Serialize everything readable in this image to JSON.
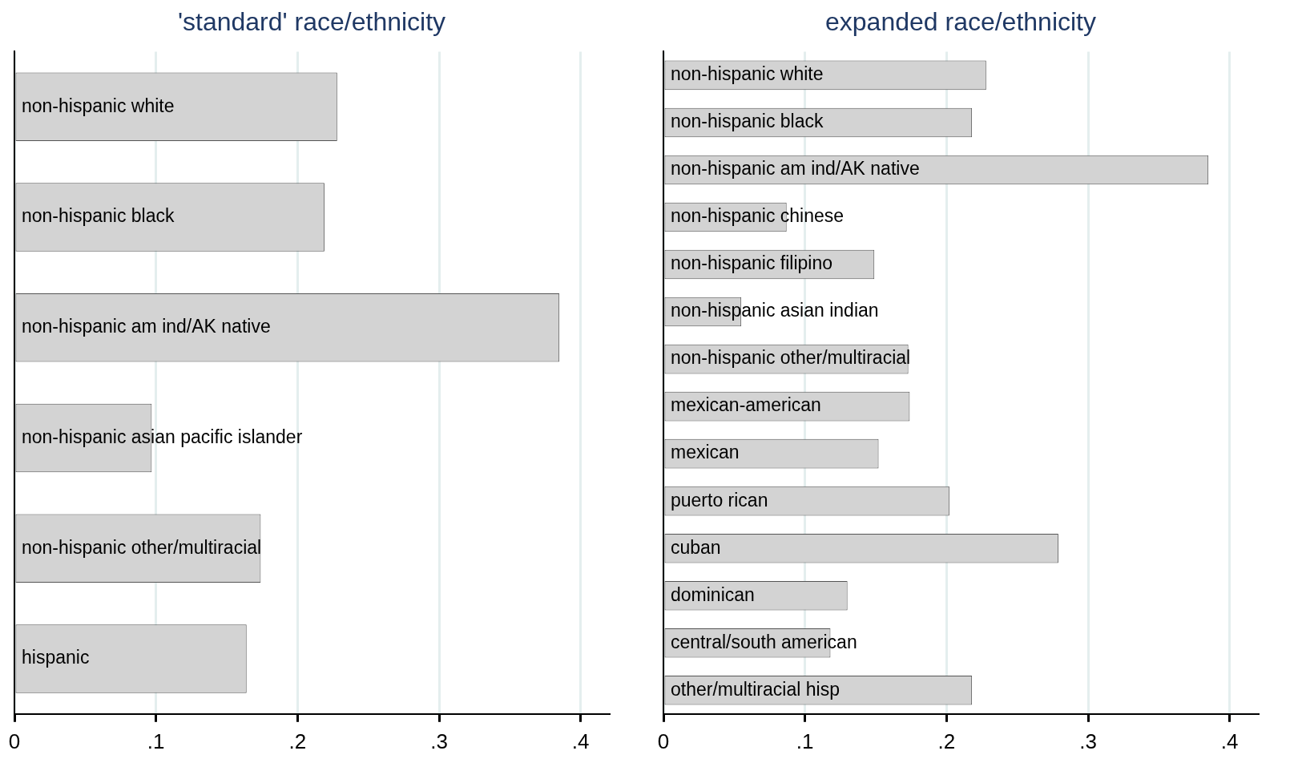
{
  "chart_data": [
    {
      "type": "bar",
      "orientation": "horizontal",
      "title": "'standard' race/ethnicity",
      "categories": [
        "non-hispanic white",
        "non-hispanic black",
        "non-hispanic am ind/AK native",
        "non-hispanic asian pacific islander",
        "non-hispanic other/multiracial",
        "hispanic"
      ],
      "values": [
        0.228,
        0.219,
        0.385,
        0.097,
        0.174,
        0.164
      ],
      "color": "#d3d3d3",
      "xlim": [
        0,
        0.42
      ],
      "xticks": [
        0,
        {
          "value": 0.1,
          "label": ".1"
        },
        {
          "value": 0.2,
          "label": ".2"
        },
        {
          "value": 0.3,
          "label": ".3"
        },
        {
          "value": 0.4,
          "label": ".4"
        }
      ],
      "grid": "x",
      "legend": false
    },
    {
      "type": "bar",
      "orientation": "horizontal",
      "title": "expanded race/ethnicity",
      "categories": [
        "non-hispanic white",
        "non-hispanic black",
        "non-hispanic am ind/AK native",
        "non-hispanic chinese",
        "non-hispanic filipino",
        "non-hispanic asian indian",
        "non-hispanic other/multiracial",
        "mexican-american",
        "mexican",
        "puerto rican",
        "cuban",
        "dominican",
        "central/south american",
        "other/multiracial hisp"
      ],
      "values": [
        0.228,
        0.218,
        0.385,
        0.087,
        0.149,
        0.055,
        0.173,
        0.174,
        0.152,
        0.202,
        0.279,
        0.13,
        0.118,
        0.218
      ],
      "color": "#d3d3d3",
      "xlim": [
        0,
        0.42
      ],
      "xticks": [
        0,
        {
          "value": 0.1,
          "label": ".1"
        },
        {
          "value": 0.2,
          "label": ".2"
        },
        {
          "value": 0.3,
          "label": ".3"
        },
        {
          "value": 0.4,
          "label": ".4"
        }
      ],
      "grid": "x",
      "legend": false
    }
  ]
}
